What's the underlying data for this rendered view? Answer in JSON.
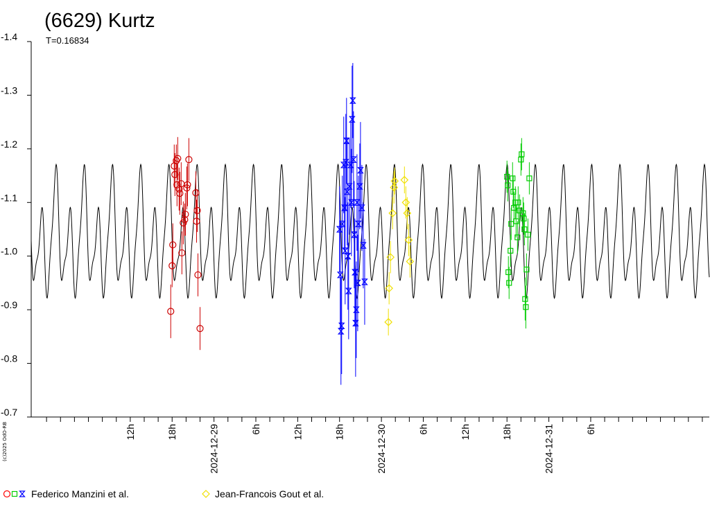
{
  "chart_data": {
    "type": "scatter",
    "title": "(6629) Kurtz",
    "subtitle": "T=0.16834",
    "credit": "(c)2025 OdO-RB",
    "yaxis": {
      "inverted": true,
      "ylim": [
        -0.7,
        -1.4
      ],
      "ticks": [
        -1.4,
        -1.3,
        -1.2,
        -1.1,
        -1.0,
        -0.9,
        -0.8,
        -0.7
      ],
      "tick_labels": [
        "-1.4",
        "-1.3",
        "-1.2",
        "-1.1",
        "-1.0",
        "-0.9",
        "-0.8",
        "-0.7"
      ]
    },
    "xaxis": {
      "unit": "hours",
      "xlim": [
        -26.2,
        71.0
      ],
      "labels": [
        {
          "x": -12,
          "text": "12h"
        },
        {
          "x": -6,
          "text": "18h"
        },
        {
          "x": 0,
          "text": "2024-12-29"
        },
        {
          "x": 6,
          "text": "6h"
        },
        {
          "x": 12,
          "text": "12h"
        },
        {
          "x": 18,
          "text": "18h"
        },
        {
          "x": 24,
          "text": "2024-12-30"
        },
        {
          "x": 30,
          "text": "6h"
        },
        {
          "x": 36,
          "text": "12h"
        },
        {
          "x": 42,
          "text": "18h"
        },
        {
          "x": 48,
          "text": "2024-12-31"
        },
        {
          "x": 54,
          "text": "6h"
        }
      ]
    },
    "model_curve": {
      "color": "#000000",
      "period_days": 0.16834,
      "mean": -1.03
    },
    "legend": [
      {
        "label": "Federico Manzini et al.",
        "markers": [
          "circle",
          "square",
          "hourglass"
        ],
        "colors": [
          "#ff0000",
          "#00cc00",
          "#0000ff"
        ]
      },
      {
        "label": "Jean-Francois Gout et al.",
        "markers": [
          "diamond"
        ],
        "colors": [
          "#f0e000"
        ]
      }
    ],
    "series": [
      {
        "name": "Federico Manzini et al.",
        "marker": "circle",
        "color": "#cc0000",
        "points": [
          {
            "x": -6.2,
            "y": -0.897,
            "e": 0.05
          },
          {
            "x": -6.0,
            "y": -0.982,
            "e": 0.04
          },
          {
            "x": -5.9,
            "y": -1.021,
            "e": 0.04
          },
          {
            "x": -5.7,
            "y": -1.168,
            "e": 0.04
          },
          {
            "x": -5.6,
            "y": -1.152,
            "e": 0.04
          },
          {
            "x": -5.4,
            "y": -1.178,
            "e": 0.03
          },
          {
            "x": -5.3,
            "y": -1.133,
            "e": 0.04
          },
          {
            "x": -5.2,
            "y": -1.182,
            "e": 0.04
          },
          {
            "x": -5.0,
            "y": -1.125,
            "e": 0.04
          },
          {
            "x": -4.9,
            "y": -1.117,
            "e": 0.04
          },
          {
            "x": -4.7,
            "y": -1.135,
            "e": 0.04
          },
          {
            "x": -4.6,
            "y": -1.006,
            "e": 0.04
          },
          {
            "x": -4.4,
            "y": -1.062,
            "e": 0.04
          },
          {
            "x": -4.2,
            "y": -1.068,
            "e": 0.03
          },
          {
            "x": -4.1,
            "y": -1.078,
            "e": 0.04
          },
          {
            "x": -3.9,
            "y": -1.127,
            "e": 0.04
          },
          {
            "x": -3.8,
            "y": -1.133,
            "e": 0.04
          },
          {
            "x": -3.6,
            "y": -1.18,
            "e": 0.04
          },
          {
            "x": -2.6,
            "y": -1.118,
            "e": 0.04
          },
          {
            "x": -2.5,
            "y": -1.065,
            "e": 0.04
          },
          {
            "x": -2.4,
            "y": -1.085,
            "e": 0.04
          },
          {
            "x": -2.3,
            "y": -0.965,
            "e": 0.04
          },
          {
            "x": -2.0,
            "y": -0.865,
            "e": 0.04
          }
        ]
      },
      {
        "name": "Federico Manzini et al.",
        "marker": "hourglass",
        "color": "#0000ff",
        "points": [
          {
            "x": 18.0,
            "y": -1.05,
            "e": 0.08
          },
          {
            "x": 18.1,
            "y": -0.965,
            "e": 0.1
          },
          {
            "x": 18.2,
            "y": -0.86,
            "e": 0.1
          },
          {
            "x": 18.3,
            "y": -0.87,
            "e": 0.09
          },
          {
            "x": 18.4,
            "y": -1.06,
            "e": 0.09
          },
          {
            "x": 18.6,
            "y": -1.17,
            "e": 0.09
          },
          {
            "x": 18.7,
            "y": -1.09,
            "e": 0.08
          },
          {
            "x": 18.8,
            "y": -1.01,
            "e": 0.1
          },
          {
            "x": 18.9,
            "y": -1.175,
            "e": 0.09
          },
          {
            "x": 19.0,
            "y": -1.215,
            "e": 0.08
          },
          {
            "x": 19.1,
            "y": -1.12,
            "e": 0.1
          },
          {
            "x": 19.2,
            "y": -1.0,
            "e": 0.1
          },
          {
            "x": 19.3,
            "y": -0.935,
            "e": 0.09
          },
          {
            "x": 19.4,
            "y": -1.13,
            "e": 0.09
          },
          {
            "x": 19.6,
            "y": -1.17,
            "e": 0.08
          },
          {
            "x": 19.7,
            "y": -1.1,
            "e": 0.1
          },
          {
            "x": 19.8,
            "y": -1.255,
            "e": 0.1
          },
          {
            "x": 19.9,
            "y": -1.29,
            "e": 0.07
          },
          {
            "x": 20.0,
            "y": -1.18,
            "e": 0.09
          },
          {
            "x": 20.1,
            "y": -1.04,
            "e": 0.1
          },
          {
            "x": 20.2,
            "y": -0.97,
            "e": 0.1
          },
          {
            "x": 20.3,
            "y": -0.875,
            "e": 0.1
          },
          {
            "x": 20.4,
            "y": -0.9,
            "e": 0.09
          },
          {
            "x": 20.5,
            "y": -1.1,
            "e": 0.09
          },
          {
            "x": 20.6,
            "y": -0.95,
            "e": 0.09
          },
          {
            "x": 20.7,
            "y": -1.06,
            "e": 0.09
          },
          {
            "x": 20.9,
            "y": -1.13,
            "e": 0.08
          },
          {
            "x": 21.0,
            "y": -1.16,
            "e": 0.09
          },
          {
            "x": 21.2,
            "y": -1.09,
            "e": 0.08
          },
          {
            "x": 21.4,
            "y": -1.02,
            "e": 0.08
          },
          {
            "x": 21.6,
            "y": -0.952,
            "e": 0.08
          }
        ]
      },
      {
        "name": "Jean-Francois Gout et al.",
        "marker": "diamond",
        "color": "#f0e000",
        "points": [
          {
            "x": 25.0,
            "y": -0.877,
            "e": 0.025
          },
          {
            "x": 25.1,
            "y": -0.94,
            "e": 0.03
          },
          {
            "x": 25.3,
            "y": -0.998,
            "e": 0.03
          },
          {
            "x": 25.6,
            "y": -1.08,
            "e": 0.03
          },
          {
            "x": 25.8,
            "y": -1.128,
            "e": 0.03
          },
          {
            "x": 25.9,
            "y": -1.14,
            "e": 0.025
          },
          {
            "x": 27.3,
            "y": -1.142,
            "e": 0.025
          },
          {
            "x": 27.5,
            "y": -1.1,
            "e": 0.03
          },
          {
            "x": 27.7,
            "y": -1.08,
            "e": 0.03
          },
          {
            "x": 27.9,
            "y": -1.03,
            "e": 0.03
          },
          {
            "x": 28.1,
            "y": -0.99,
            "e": 0.03
          }
        ]
      },
      {
        "name": "Federico Manzini et al.",
        "marker": "square",
        "color": "#00cc00",
        "points": [
          {
            "x": 42.0,
            "y": -1.148,
            "e": 0.03
          },
          {
            "x": 42.1,
            "y": -1.132,
            "e": 0.03
          },
          {
            "x": 42.2,
            "y": -0.97,
            "e": 0.03
          },
          {
            "x": 42.3,
            "y": -0.95,
            "e": 0.03
          },
          {
            "x": 42.5,
            "y": -1.01,
            "e": 0.03
          },
          {
            "x": 42.6,
            "y": -1.06,
            "e": 0.03
          },
          {
            "x": 42.8,
            "y": -1.145,
            "e": 0.03
          },
          {
            "x": 42.9,
            "y": -1.12,
            "e": 0.03
          },
          {
            "x": 43.0,
            "y": -1.09,
            "e": 0.03
          },
          {
            "x": 43.2,
            "y": -1.1,
            "e": 0.03
          },
          {
            "x": 43.3,
            "y": -1.065,
            "e": 0.03
          },
          {
            "x": 43.5,
            "y": -1.035,
            "e": 0.03
          },
          {
            "x": 43.6,
            "y": -1.1,
            "e": 0.03
          },
          {
            "x": 43.8,
            "y": -1.085,
            "e": 0.03
          },
          {
            "x": 44.0,
            "y": -1.18,
            "e": 0.03
          },
          {
            "x": 44.1,
            "y": -1.19,
            "e": 0.03
          },
          {
            "x": 44.3,
            "y": -1.08,
            "e": 0.03
          },
          {
            "x": 44.4,
            "y": -1.07,
            "e": 0.03
          },
          {
            "x": 44.5,
            "y": -1.05,
            "e": 0.03
          },
          {
            "x": 44.6,
            "y": -0.92,
            "e": 0.04
          },
          {
            "x": 44.7,
            "y": -0.905,
            "e": 0.04
          },
          {
            "x": 44.8,
            "y": -0.975,
            "e": 0.03
          },
          {
            "x": 45.0,
            "y": -1.04,
            "e": 0.03
          },
          {
            "x": 45.2,
            "y": -1.145,
            "e": 0.03
          }
        ]
      }
    ]
  }
}
